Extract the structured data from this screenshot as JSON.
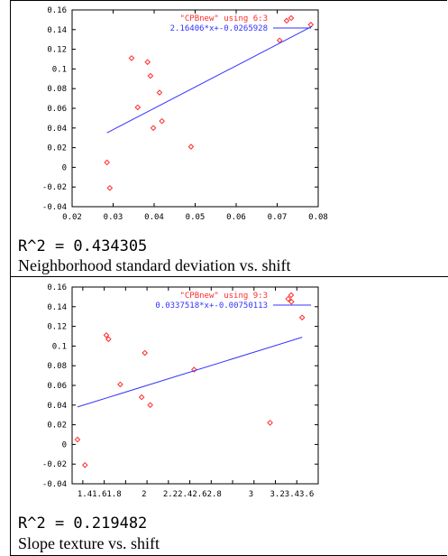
{
  "chart_data": [
    {
      "type": "scatter",
      "xlim": [
        0.02,
        0.08
      ],
      "ylim": [
        -0.04,
        0.16
      ],
      "xticks": [
        "0.02",
        "0.03",
        "0.04",
        "0.05",
        "0.06",
        "0.07",
        "0.08"
      ],
      "yticks": [
        "-0.04",
        "-0.02",
        "0",
        "0.02",
        "0.04",
        "0.06",
        "0.08",
        "0.1",
        "0.12",
        "0.14",
        "0.16"
      ],
      "grid": false,
      "legend_position": "top-right",
      "series": [
        {
          "name": "\"CPBnew\" using 6:3",
          "color": "#ff2a2a",
          "marker": "diamond",
          "points": [
            [
              0.0285,
              0.005
            ],
            [
              0.0292,
              -0.021
            ],
            [
              0.0345,
              0.111
            ],
            [
              0.036,
              0.061
            ],
            [
              0.0384,
              0.107
            ],
            [
              0.0391,
              0.093
            ],
            [
              0.0398,
              0.04
            ],
            [
              0.0413,
              0.076
            ],
            [
              0.0419,
              0.047
            ],
            [
              0.049,
              0.021
            ],
            [
              0.0706,
              0.129
            ],
            [
              0.0723,
              0.149
            ],
            [
              0.0782,
              0.145
            ]
          ]
        },
        {
          "name": "2.16406*x+-0.0265928",
          "color": "#3333ff",
          "type": "line",
          "slope": 2.16406,
          "intercept": -0.0265928,
          "x_range": [
            0.0285,
            0.0785
          ]
        }
      ]
    },
    {
      "type": "scatter",
      "xlim": [
        1.3,
        3.6
      ],
      "ylim": [
        -0.04,
        0.16
      ],
      "xticks": [
        "1.4",
        "1.6",
        "1.8",
        "2",
        "2.2",
        "2.4",
        "2.6",
        "2.8",
        "3",
        "3.2",
        "3.4",
        "3.6"
      ],
      "xtick_labels": [
        "1.41.61.8",
        "2",
        "2.22.42.62.8",
        "3",
        "3.23.43.6"
      ],
      "yticks": [
        "-0.04",
        "-0.02",
        "0",
        "0.02",
        "0.04",
        "0.06",
        "0.08",
        "0.1",
        "0.12",
        "0.14",
        "0.16"
      ],
      "grid": false,
      "legend_position": "top-right",
      "series": [
        {
          "name": "\"CPBnew\" using 9:3",
          "color": "#ff2a2a",
          "marker": "diamond",
          "points": [
            [
              1.35,
              0.005
            ],
            [
              1.42,
              -0.021
            ],
            [
              1.62,
              0.111
            ],
            [
              1.64,
              0.107
            ],
            [
              1.75,
              0.061
            ],
            [
              1.95,
              0.048
            ],
            [
              1.98,
              0.093
            ],
            [
              2.03,
              0.04
            ],
            [
              2.44,
              0.076
            ],
            [
              3.15,
              0.022
            ],
            [
              3.32,
              0.148
            ],
            [
              3.35,
              0.145
            ],
            [
              3.45,
              0.129
            ]
          ]
        },
        {
          "name": "0.0337518*x+-0.00750113",
          "color": "#3333ff",
          "type": "line",
          "slope": 0.0337518,
          "intercept": -0.00750113,
          "x_range": [
            1.35,
            3.45
          ]
        }
      ]
    }
  ],
  "panels": [
    {
      "r2": "R^2 = 0.434305",
      "caption": "Neighborhood standard deviation vs. shift"
    },
    {
      "r2": "R^2 = 0.219482",
      "caption": "Slope texture  vs. shift"
    }
  ]
}
